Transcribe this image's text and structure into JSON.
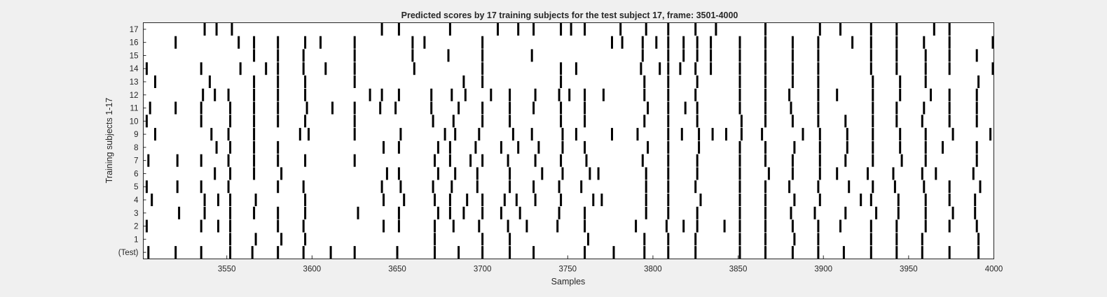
{
  "chart_data": {
    "type": "event-raster",
    "title": "Predicted scores by 17 training subjects for the test subject 17, frame: 3501-4000",
    "xlabel": "Samples",
    "ylabel": "Training subjects 1-17",
    "xlim": [
      3501,
      4000
    ],
    "xticks": [
      3550,
      3600,
      3650,
      3700,
      3750,
      3800,
      3850,
      3900,
      3950,
      4000
    ],
    "row_labels": [
      "(Test)",
      "1",
      "2",
      "3",
      "4",
      "5",
      "6",
      "7",
      "8",
      "9",
      "10",
      "11",
      "12",
      "13",
      "14",
      "15",
      "16",
      "17"
    ],
    "grid": false,
    "colors": {
      "mark": "#000000",
      "axes_bg": "#ffffff",
      "figure_bg": "#f0f0f0"
    },
    "rows": [
      {
        "label": "(Test)",
        "events": [
          3504,
          3520,
          3535,
          3552,
          3565,
          3580,
          3595,
          3611,
          3625,
          3650,
          3672,
          3686,
          3700,
          3716,
          3730,
          3760,
          3777,
          3795,
          3809,
          3825,
          3851,
          3866,
          3882,
          3897,
          3912,
          3928,
          3943,
          3958,
          3974,
          3991
        ]
      },
      {
        "label": "1",
        "events": [
          3552,
          3567,
          3582,
          3596,
          3672,
          3700,
          3716,
          3762,
          3795,
          3809,
          3825,
          3851,
          3866,
          3883,
          3897,
          3928,
          3943,
          3958,
          3991
        ]
      },
      {
        "label": "2",
        "events": [
          3503,
          3535,
          3545,
          3552,
          3580,
          3595,
          3642,
          3651,
          3672,
          3683,
          3698,
          3715,
          3726,
          3744,
          3760,
          3790,
          3808,
          3818,
          3826,
          3842,
          3851,
          3866,
          3882,
          3897,
          3910,
          3928,
          3943,
          3960,
          3974,
          3990
        ]
      },
      {
        "label": "3",
        "events": [
          3522,
          3537,
          3552,
          3566,
          3580,
          3596,
          3627,
          3651,
          3674,
          3681,
          3689,
          3700,
          3711,
          3722,
          3745,
          3760,
          3796,
          3809,
          3826,
          3851,
          3866,
          3881,
          3895,
          3913,
          3931,
          3944,
          3960,
          3976,
          3989
        ]
      },
      {
        "label": "4",
        "events": [
          3506,
          3537,
          3545,
          3552,
          3567,
          3596,
          3642,
          3654,
          3672,
          3681,
          3691,
          3700,
          3713,
          3720,
          3731,
          3746,
          3765,
          3770,
          3796,
          3809,
          3828,
          3851,
          3866,
          3883,
          3898,
          3922,
          3928,
          3944,
          3960,
          3974,
          3989
        ]
      },
      {
        "label": "5",
        "events": [
          3503,
          3521,
          3535,
          3551,
          3580,
          3595,
          3641,
          3652,
          3671,
          3682,
          3697,
          3716,
          3730,
          3745,
          3758,
          3796,
          3809,
          3825,
          3851,
          3866,
          3880,
          3897,
          3915,
          3929,
          3942,
          3959,
          3974,
          3992
        ]
      },
      {
        "label": "6",
        "events": [
          3543,
          3552,
          3566,
          3582,
          3644,
          3651,
          3674,
          3684,
          3697,
          3716,
          3735,
          3747,
          3763,
          3768,
          3796,
          3809,
          3826,
          3851,
          3868,
          3882,
          3898,
          3908,
          3926,
          3941,
          3958,
          3966,
          3988
        ]
      },
      {
        "label": "7",
        "events": [
          3504,
          3521,
          3535,
          3551,
          3566,
          3580,
          3596,
          3625,
          3672,
          3681,
          3693,
          3700,
          3715,
          3731,
          3746,
          3761,
          3794,
          3809,
          3826,
          3851,
          3866,
          3882,
          3898,
          3913,
          3929,
          3946,
          3960,
          3990
        ]
      },
      {
        "label": "8",
        "events": [
          3544,
          3552,
          3566,
          3580,
          3642,
          3651,
          3674,
          3681,
          3696,
          3711,
          3721,
          3733,
          3747,
          3760,
          3797,
          3809,
          3827,
          3851,
          3866,
          3883,
          3898,
          3914,
          3929,
          3945,
          3960,
          3970,
          3990
        ]
      },
      {
        "label": "9",
        "events": [
          3508,
          3541,
          3551,
          3566,
          3593,
          3598,
          3625,
          3652,
          3678,
          3684,
          3698,
          3718,
          3729,
          3747,
          3755,
          3776,
          3791,
          3809,
          3817,
          3827,
          3835,
          3843,
          3852,
          3864,
          3888,
          3898,
          3914,
          3929,
          3945,
          3960,
          3976,
          3998
        ]
      },
      {
        "label": "10",
        "events": [
          3503,
          3535,
          3552,
          3566,
          3580,
          3596,
          3625,
          3671,
          3683,
          3700,
          3716,
          3746,
          3760,
          3795,
          3809,
          3826,
          3852,
          3866,
          3882,
          3897,
          3913,
          3929,
          3943,
          3958,
          3974,
          3990
        ]
      },
      {
        "label": "11",
        "events": [
          3505,
          3520,
          3535,
          3552,
          3566,
          3580,
          3597,
          3612,
          3625,
          3640,
          3649,
          3670,
          3686,
          3700,
          3716,
          3730,
          3746,
          3760,
          3797,
          3809,
          3819,
          3826,
          3851,
          3866,
          3881,
          3897,
          3929,
          3943,
          3959,
          3974,
          3990
        ]
      },
      {
        "label": "12",
        "events": [
          3536,
          3543,
          3551,
          3566,
          3580,
          3596,
          3634,
          3641,
          3651,
          3670,
          3682,
          3690,
          3705,
          3716,
          3731,
          3745,
          3751,
          3760,
          3771,
          3795,
          3809,
          3825,
          3851,
          3866,
          3880,
          3897,
          3908,
          3929,
          3945,
          3963,
          3974,
          3990
        ]
      },
      {
        "label": "13",
        "events": [
          3508,
          3540,
          3566,
          3580,
          3596,
          3625,
          3689,
          3700,
          3746,
          3795,
          3809,
          3826,
          3851,
          3866,
          3882,
          3897,
          3929,
          3945,
          3960,
          3991
        ]
      },
      {
        "label": "14",
        "events": [
          3503,
          3535,
          3558,
          3573,
          3580,
          3595,
          3608,
          3625,
          3660,
          3700,
          3746,
          3755,
          3793,
          3804,
          3809,
          3816,
          3825,
          3834,
          3851,
          3866,
          3882,
          3897,
          3928,
          3943,
          3960,
          3974,
          4000
        ]
      },
      {
        "label": "15",
        "events": [
          3566,
          3580,
          3595,
          3625,
          3659,
          3680,
          3700,
          3729,
          3794,
          3809,
          3818,
          3826,
          3834,
          3851,
          3866,
          3882,
          3897,
          3928,
          3943,
          3960,
          3974,
          3990
        ]
      },
      {
        "label": "16",
        "events": [
          3520,
          3557,
          3566,
          3580,
          3596,
          3605,
          3625,
          3659,
          3666,
          3700,
          3776,
          3782,
          3794,
          3802,
          3809,
          3818,
          3826,
          3834,
          3851,
          3866,
          3882,
          3897,
          3917,
          3928,
          3943,
          3959,
          3974,
          4000
        ]
      },
      {
        "label": "17",
        "events": [
          3537,
          3544,
          3553,
          3641,
          3651,
          3681,
          3709,
          3721,
          3730,
          3746,
          3752,
          3760,
          3781,
          3796,
          3809,
          3825,
          3837,
          3866,
          3898,
          3910,
          3928,
          3943,
          3965,
          3974
        ]
      }
    ]
  }
}
